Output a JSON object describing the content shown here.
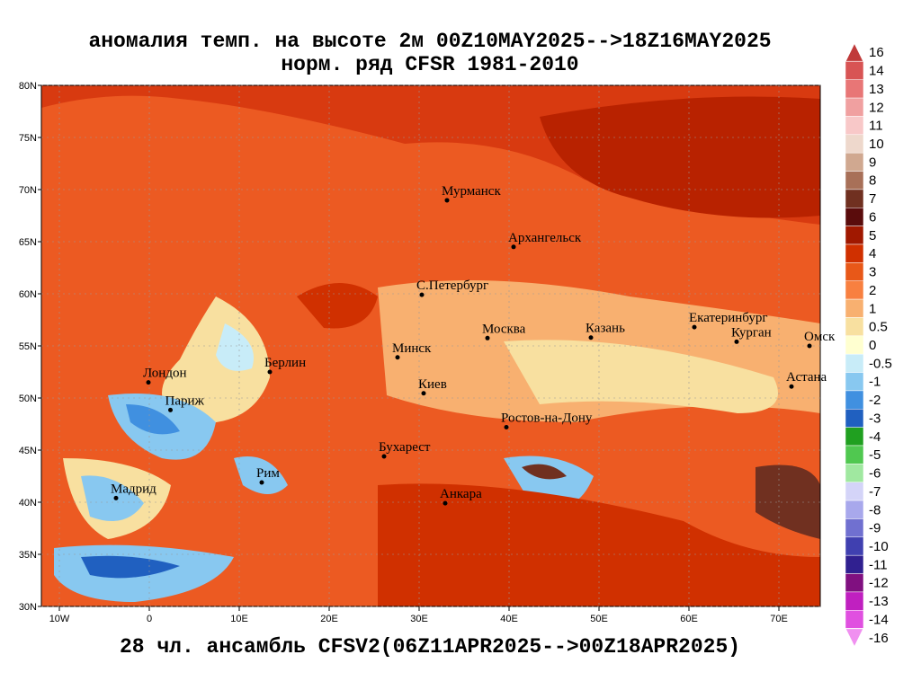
{
  "header": {
    "title": "аномалия темп. на высоте 2м 00Z10MAY2025-->18Z16MAY2025",
    "subtitle": "норм. ряд CFSR 1981-2010"
  },
  "footer": "28 чл. ансамбль CFSV2(06Z11APR2025-->00Z18APR2025)",
  "map": {
    "lonlim": [
      -12,
      74.6
    ],
    "latlim": [
      30,
      80
    ],
    "xticks": [
      {
        "value": -10,
        "label": "10W"
      },
      0,
      {
        "value": 10,
        "label": "10E"
      },
      {
        "value": 20,
        "label": "20E"
      },
      {
        "value": 30,
        "label": "30E"
      },
      {
        "value": 40,
        "label": "40E"
      },
      {
        "value": 50,
        "label": "50E"
      },
      {
        "value": 60,
        "label": "60E"
      },
      {
        "value": 70,
        "label": "70E"
      }
    ],
    "yticks": [
      {
        "value": 30,
        "label": "30N"
      },
      {
        "value": 35,
        "label": "35N"
      },
      {
        "value": 40,
        "label": "40N"
      },
      {
        "value": 45,
        "label": "45N"
      },
      {
        "value": 50,
        "label": "50N"
      },
      {
        "value": 55,
        "label": "55N"
      },
      {
        "value": 60,
        "label": "60N"
      },
      {
        "value": 65,
        "label": "65N"
      },
      {
        "value": 70,
        "label": "70N"
      },
      {
        "value": 75,
        "label": "75N"
      },
      {
        "value": 80,
        "label": "80N"
      }
    ],
    "cities": [
      {
        "name": "Мурманск",
        "lon": 33.1,
        "lat": 68.97
      },
      {
        "name": "Архангельск",
        "lon": 40.5,
        "lat": 64.5
      },
      {
        "name": "С.Петербург",
        "lon": 30.3,
        "lat": 59.9
      },
      {
        "name": "Москва",
        "lon": 37.6,
        "lat": 55.75
      },
      {
        "name": "Казань",
        "lon": 49.1,
        "lat": 55.8
      },
      {
        "name": "Екатеринбург",
        "lon": 60.6,
        "lat": 56.8
      },
      {
        "name": "Курган",
        "lon": 65.3,
        "lat": 55.4
      },
      {
        "name": "Омск",
        "lon": 73.4,
        "lat": 55.0
      },
      {
        "name": "Астана",
        "lon": 71.4,
        "lat": 51.1
      },
      {
        "name": "Минск",
        "lon": 27.6,
        "lat": 53.9
      },
      {
        "name": "Берлин",
        "lon": 13.4,
        "lat": 52.5
      },
      {
        "name": "Лондон",
        "lon": -0.1,
        "lat": 51.5
      },
      {
        "name": "Париж",
        "lon": 2.35,
        "lat": 48.85
      },
      {
        "name": "Киев",
        "lon": 30.5,
        "lat": 50.45
      },
      {
        "name": "Ростов-на-Дону",
        "lon": 39.7,
        "lat": 47.2
      },
      {
        "name": "Бухарест",
        "lon": 26.1,
        "lat": 44.4
      },
      {
        "name": "Рим",
        "lon": 12.5,
        "lat": 41.9
      },
      {
        "name": "Мадрид",
        "lon": -3.7,
        "lat": 40.4
      },
      {
        "name": "Анкара",
        "lon": 32.9,
        "lat": 39.9
      }
    ]
  },
  "colorbar": {
    "levels": [
      {
        "label": 16,
        "color": "#c03a3a"
      },
      {
        "label": 14,
        "color": "#d85454"
      },
      {
        "label": 13,
        "color": "#e87676"
      },
      {
        "label": 12,
        "color": "#f0a0a0"
      },
      {
        "label": 11,
        "color": "#f8c8c8"
      },
      {
        "label": 10,
        "color": "#eed8cc"
      },
      {
        "label": 9,
        "color": "#d0a890"
      },
      {
        "label": 8,
        "color": "#a87058"
      },
      {
        "label": 7,
        "color": "#703020"
      },
      {
        "label": 6,
        "color": "#5a0c0c"
      },
      {
        "label": 5,
        "color": "#a01800"
      },
      {
        "label": 4,
        "color": "#d03000"
      },
      {
        "label": 3,
        "color": "#e85818"
      },
      {
        "label": 2,
        "color": "#f88040"
      },
      {
        "label": 1,
        "color": "#f8b070"
      },
      {
        "label": 0.5,
        "color": "#f8e0a0"
      },
      {
        "label": 0,
        "color": "#ffffd0"
      },
      {
        "label": -0.5,
        "color": "#c8ecf8"
      },
      {
        "label": -1,
        "color": "#88c8f0"
      },
      {
        "label": -2,
        "color": "#4090e0"
      },
      {
        "label": -3,
        "color": "#2060c0"
      },
      {
        "label": -4,
        "color": "#20a020"
      },
      {
        "label": -5,
        "color": "#50c850"
      },
      {
        "label": -6,
        "color": "#a0e8a0"
      },
      {
        "label": -7,
        "color": "#d4d4f8"
      },
      {
        "label": -8,
        "color": "#a8a8ec"
      },
      {
        "label": -9,
        "color": "#7070d0"
      },
      {
        "label": -10,
        "color": "#4040b0"
      },
      {
        "label": -11,
        "color": "#302090"
      },
      {
        "label": -12,
        "color": "#801080"
      },
      {
        "label": -13,
        "color": "#c020c0"
      },
      {
        "label": -14,
        "color": "#e050e0"
      },
      {
        "label": -16,
        "color": "#f090f0"
      }
    ]
  }
}
